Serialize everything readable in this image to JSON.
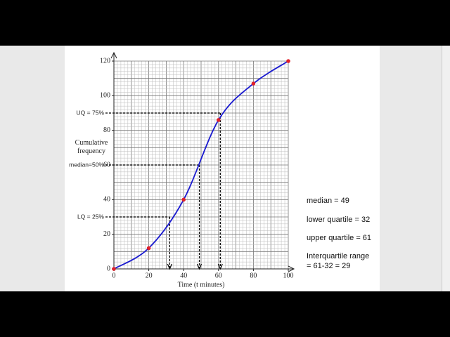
{
  "chart_data": {
    "type": "line",
    "x": [
      0,
      20,
      40,
      60,
      80,
      100
    ],
    "series": [
      {
        "name": "Cumulative frequency",
        "color": "#1a1ad0",
        "values": [
          0,
          12,
          40,
          86,
          107,
          120
        ]
      }
    ],
    "point_color": "#e0202a",
    "xlabel": "Time (t minutes)",
    "ylabel": "Cumulative frequency",
    "xlim": [
      0,
      100
    ],
    "xticks": [
      0,
      20,
      40,
      60,
      80,
      100
    ],
    "ylim": [
      0,
      120
    ],
    "yticks": [
      0,
      20,
      40,
      60,
      80,
      100,
      120
    ],
    "grid": true,
    "minor_grid_step": 2,
    "quartile_guides": [
      {
        "label": "UQ = 75%",
        "x": 61,
        "y": 90
      },
      {
        "label": "median=50%",
        "x": 49,
        "y": 60
      },
      {
        "label": "LQ = 25%",
        "x": 32,
        "y": 30
      }
    ]
  },
  "notes": [
    "median = 49",
    "lower quartile = 32",
    "upper quartile = 61",
    "Interquartile range",
    "= 61-32 = 29"
  ]
}
